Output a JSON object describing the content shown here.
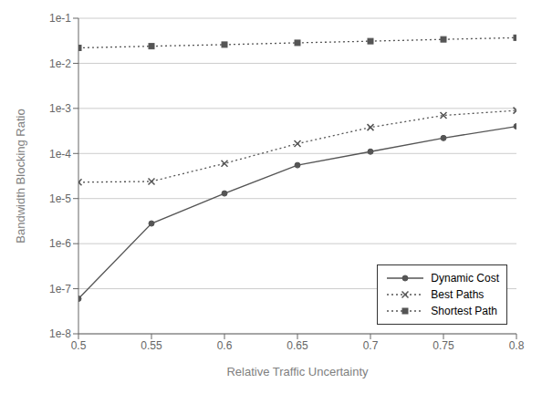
{
  "chart_data": {
    "type": "line",
    "xlabel": "Relative Traffic Uncertainty",
    "ylabel": "Bandwidth Blocking Ratio",
    "x": [
      0.5,
      0.55,
      0.6,
      0.65,
      0.7,
      0.75,
      0.8
    ],
    "xlim": [
      0.5,
      0.8
    ],
    "ylim": [
      1e-08,
      0.1
    ],
    "xticks": [
      0.5,
      0.55,
      0.6,
      0.65,
      0.7,
      0.75,
      0.8
    ],
    "yticks": [
      {
        "value": 1e-08,
        "label": "1e-8"
      },
      {
        "value": 1e-07,
        "label": "1e-7"
      },
      {
        "value": 1e-06,
        "label": "1e-6"
      },
      {
        "value": 1e-05,
        "label": "1e-5"
      },
      {
        "value": 0.0001,
        "label": "1e-4"
      },
      {
        "value": 0.001,
        "label": "1e-3"
      },
      {
        "value": 0.01,
        "label": "1e-2"
      },
      {
        "value": 0.1,
        "label": "1e-1"
      }
    ],
    "log": "y",
    "grid": true,
    "legend": "lower right",
    "color": "#555555",
    "series": [
      {
        "name": "Dynamic Cost",
        "values": [
          6e-08,
          2.8e-06,
          1.3e-05,
          5.5e-05,
          0.00011,
          0.00022,
          0.0004
        ],
        "marker": "circle",
        "line_style": "solid"
      },
      {
        "name": "Best Paths",
        "values": [
          2.3e-05,
          2.4e-05,
          6e-05,
          0.000165,
          0.00038,
          0.0007,
          0.0009
        ],
        "marker": "x",
        "line_style": "dotted"
      },
      {
        "name": "Shortest Path",
        "values": [
          0.022,
          0.024,
          0.026,
          0.0285,
          0.031,
          0.034,
          0.037
        ],
        "marker": "square",
        "line_style": "dotted"
      }
    ]
  }
}
